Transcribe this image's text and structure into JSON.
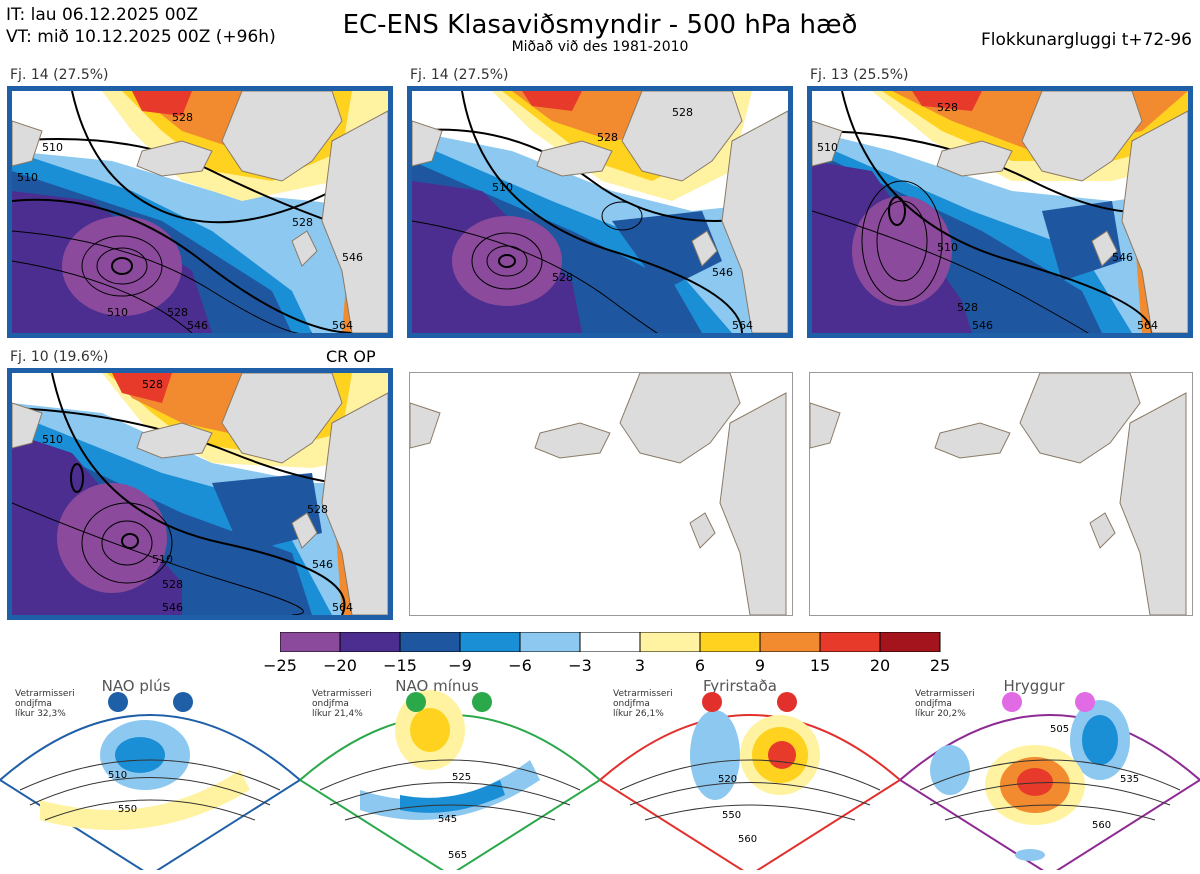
{
  "header": {
    "it_line": "IT: lau 06.12.2025 00Z",
    "vt_line": "VT: mið 10.12.2025 00Z  (+96h)",
    "title": "EC-ENS Klasaviðsmyndir - 500 hPa hæð",
    "subtitle": "Miðað við des 1981-2010",
    "window": "Flokkunargluggi t+72-96"
  },
  "panels": [
    {
      "label": "Fj. 14 (27.5%)",
      "contours": [
        "510",
        "528",
        "510",
        "546",
        "528",
        "510",
        "528",
        "546",
        "564"
      ]
    },
    {
      "label": "Fj. 14 (27.5%)",
      "contours": [
        "510",
        "528",
        "528",
        "546",
        "528",
        "564"
      ]
    },
    {
      "label": "Fj. 13 (25.5%)",
      "contours": [
        "510",
        "528",
        "510",
        "528",
        "546",
        "546",
        "564"
      ]
    },
    {
      "label": "Fj. 10 (19.6%)",
      "extra": "CR OP",
      "contours": [
        "528",
        "510",
        "510",
        "528",
        "546",
        "528",
        "546",
        "564"
      ]
    }
  ],
  "colorbar": {
    "ticks": [
      "−25",
      "−20",
      "−15",
      "−9",
      "−6",
      "−3",
      "3",
      "6",
      "9",
      "15",
      "20",
      "25"
    ],
    "colors": [
      "#8b4a9c",
      "#4b2e8f",
      "#1e56a0",
      "#1a8fd6",
      "#8cc8ef",
      "#ffffff",
      "#fff2a0",
      "#ffd21f",
      "#f28b2f",
      "#e83a2a",
      "#a3141c"
    ]
  },
  "regimes": [
    {
      "name": "NAO plús",
      "note": [
        "Vetrarmisseri",
        "ondjfma",
        "líkur 32,3%"
      ],
      "color": "#1f5fa8",
      "labels": [
        "510",
        "550"
      ]
    },
    {
      "name": "NAO mínus",
      "note": [
        "Vetrarmisseri",
        "ondjfma",
        "líkur 21,4%"
      ],
      "color": "#2aa84a",
      "labels": [
        "525",
        "545",
        "565"
      ]
    },
    {
      "name": "Fyrirstaða",
      "note": [
        "Vetrarmisseri",
        "ondjfma",
        "líkur 26,1%"
      ],
      "color": "#e2302d",
      "labels": [
        "520",
        "550",
        "560"
      ]
    },
    {
      "name": "Hryggur",
      "note": [
        "Vetrarmisseri",
        "ondjfma",
        "líkur 20,2%"
      ],
      "color": "#8e2a93",
      "labels": [
        "505",
        "535",
        "560"
      ]
    }
  ],
  "icons": {
    "dot_blue": "#1f5fa8",
    "dot_green": "#2aa84a",
    "dot_red": "#e2302d",
    "dot_violet": "#e06be4"
  }
}
